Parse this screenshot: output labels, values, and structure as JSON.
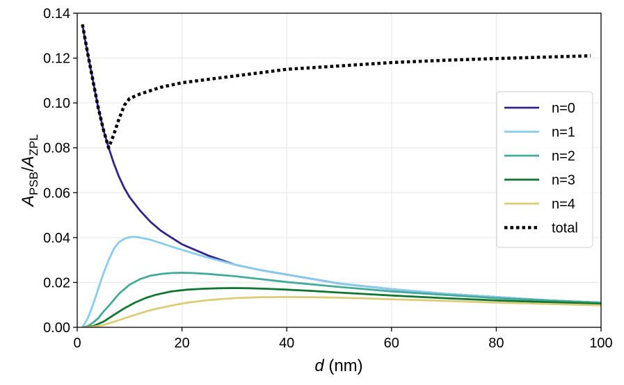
{
  "chart_data": {
    "type": "line",
    "title": "",
    "xlabel": {
      "italic": "d",
      "rest": " (nm)"
    },
    "ylabel": {
      "num_var": "A",
      "num_sub": "PSB",
      "sep": "/",
      "den_var": "A",
      "den_sub": "ZPL"
    },
    "xlim": [
      0,
      100
    ],
    "ylim": [
      0,
      0.14
    ],
    "xticks": [
      0,
      20,
      40,
      60,
      80,
      100
    ],
    "xtick_labels": [
      "0",
      "20",
      "40",
      "60",
      "80",
      "100"
    ],
    "yticks": [
      0,
      0.02,
      0.04,
      0.06,
      0.08,
      0.1,
      0.12,
      0.14
    ],
    "ytick_labels": [
      "0.00",
      "0.02",
      "0.04",
      "0.06",
      "0.08",
      "0.10",
      "0.12",
      "0.14"
    ],
    "grid": true,
    "legend_position": "center-right",
    "series": [
      {
        "name": "n=0",
        "color": "#332288",
        "style": "solid",
        "x": [
          1,
          1.5,
          2,
          3,
          4,
          5,
          6,
          7,
          8,
          9,
          10,
          12,
          14,
          16,
          18,
          20,
          25,
          30,
          35,
          40,
          50,
          60,
          70,
          80,
          90,
          100
        ],
        "y": [
          0.135,
          0.128,
          0.122,
          0.11,
          0.098,
          0.088,
          0.08,
          0.073,
          0.067,
          0.062,
          0.058,
          0.052,
          0.047,
          0.043,
          0.04,
          0.037,
          0.032,
          0.028,
          0.0255,
          0.0235,
          0.0195,
          0.017,
          0.015,
          0.0135,
          0.012,
          0.011
        ]
      },
      {
        "name": "n=1",
        "color": "#88CCEE",
        "style": "solid",
        "x": [
          1,
          2,
          3,
          4,
          5,
          6,
          7,
          8,
          9,
          10,
          11,
          12,
          14,
          16,
          18,
          20,
          25,
          30,
          35,
          40,
          50,
          60,
          70,
          80,
          90,
          100
        ],
        "y": [
          0.0,
          0.004,
          0.01,
          0.017,
          0.024,
          0.03,
          0.035,
          0.038,
          0.0395,
          0.0402,
          0.0403,
          0.04,
          0.039,
          0.0375,
          0.036,
          0.0345,
          0.031,
          0.028,
          0.0255,
          0.0235,
          0.0195,
          0.017,
          0.015,
          0.0135,
          0.012,
          0.011
        ]
      },
      {
        "name": "n=2",
        "color": "#44AA99",
        "style": "solid",
        "x": [
          1,
          2,
          3,
          4,
          5,
          6,
          8,
          10,
          12,
          14,
          16,
          18,
          20,
          22,
          25,
          30,
          35,
          40,
          50,
          60,
          70,
          80,
          90,
          100
        ],
        "y": [
          0.0,
          0.0005,
          0.002,
          0.004,
          0.007,
          0.0095,
          0.015,
          0.019,
          0.0215,
          0.023,
          0.0238,
          0.0242,
          0.0243,
          0.0242,
          0.0238,
          0.0228,
          0.0215,
          0.0202,
          0.018,
          0.016,
          0.0145,
          0.013,
          0.012,
          0.011
        ]
      },
      {
        "name": "n=3",
        "color": "#117733",
        "style": "solid",
        "x": [
          1,
          3,
          5,
          7,
          9,
          11,
          13,
          15,
          18,
          21,
          24,
          27,
          30,
          33,
          36,
          40,
          45,
          50,
          60,
          70,
          80,
          90,
          100
        ],
        "y": [
          0.0,
          0.0005,
          0.0025,
          0.0055,
          0.0085,
          0.011,
          0.013,
          0.0145,
          0.016,
          0.0168,
          0.0172,
          0.0174,
          0.0175,
          0.0174,
          0.0172,
          0.0168,
          0.0162,
          0.0155,
          0.0142,
          0.013,
          0.012,
          0.0112,
          0.0105
        ]
      },
      {
        "name": "n=4",
        "color": "#DDCC77",
        "style": "solid",
        "x": [
          1,
          3,
          5,
          7,
          9,
          11,
          13,
          15,
          18,
          21,
          25,
          30,
          35,
          40,
          45,
          50,
          55,
          60,
          70,
          80,
          90,
          100
        ],
        "y": [
          0.0,
          0.0002,
          0.001,
          0.0025,
          0.004,
          0.0055,
          0.007,
          0.0082,
          0.0097,
          0.011,
          0.0121,
          0.013,
          0.0134,
          0.0135,
          0.0134,
          0.0132,
          0.0129,
          0.0125,
          0.0118,
          0.011,
          0.0104,
          0.0098
        ]
      },
      {
        "name": "total",
        "color": "#000000",
        "style": "dotted",
        "x": [
          1,
          2,
          3,
          4,
          5,
          6,
          7,
          8,
          9,
          10,
          12,
          14,
          16,
          18,
          20,
          25,
          30,
          35,
          40,
          50,
          60,
          70,
          80,
          90,
          98
        ],
        "y": [
          0.135,
          0.122,
          0.11,
          0.098,
          0.088,
          0.08,
          0.086,
          0.093,
          0.099,
          0.102,
          0.104,
          0.1055,
          0.107,
          0.108,
          0.109,
          0.1105,
          0.112,
          0.1135,
          0.115,
          0.1165,
          0.118,
          0.119,
          0.1198,
          0.1205,
          0.121
        ]
      }
    ]
  }
}
